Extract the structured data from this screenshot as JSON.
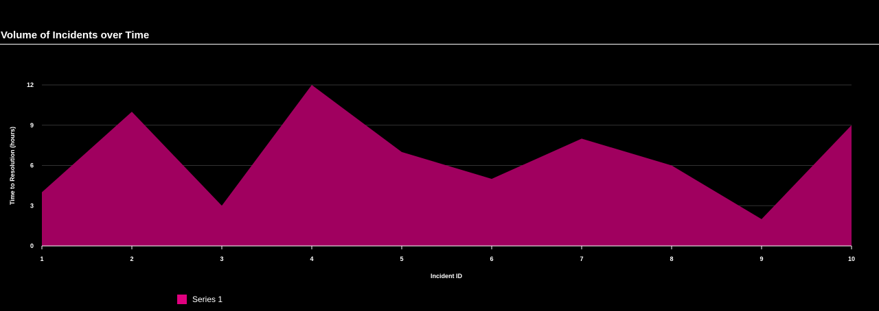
{
  "chart_data": {
    "type": "area",
    "title": "Volume of Incidents over Time",
    "xlabel": "Incident ID",
    "ylabel": "Time to Resolution (hours)",
    "x": [
      1,
      2,
      3,
      4,
      5,
      6,
      7,
      8,
      9,
      10
    ],
    "x_tick_labels": [
      "1",
      "2",
      "3",
      "4",
      "5",
      "6",
      "7",
      "8",
      "9",
      "10"
    ],
    "y_ticks": [
      0,
      3,
      6,
      9,
      12
    ],
    "y_tick_labels": [
      "0",
      "3",
      "6",
      "9",
      "12"
    ],
    "ylim": [
      0,
      12
    ],
    "xlim": [
      1,
      10
    ],
    "grid": true,
    "legend_position": "bottom-left",
    "series": [
      {
        "name": "Series 1",
        "values": [
          4,
          10,
          3,
          12,
          7,
          5,
          8,
          6,
          2,
          9
        ],
        "color": "#a0005f",
        "legend_color": "#e0007f"
      }
    ]
  },
  "colors": {
    "background": "#000000",
    "grid": "#333333",
    "axis": "#ffffff",
    "text": "#ffffff"
  }
}
